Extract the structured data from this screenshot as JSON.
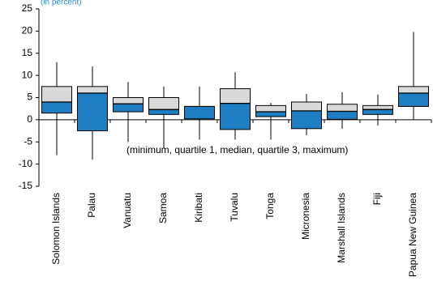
{
  "chart_data": {
    "type": "boxplot",
    "title": "",
    "unit_label": "(in percent)",
    "annotation": "(minimum, quartile 1, median, quartile 3, maximum)",
    "ylim": [
      -15,
      25
    ],
    "yticks": [
      -15,
      -10,
      -5,
      0,
      5,
      10,
      15,
      20,
      25
    ],
    "grid": false,
    "colors": {
      "lower_box": "#1f7dc1",
      "upper_box": "#d9d9d9",
      "box_border": "#000000",
      "whisker": "#000000",
      "axis": "#000000"
    },
    "categories": [
      "Solomon Islands",
      "Palau",
      "Vanuatu",
      "Samoa",
      "Kiribati",
      "Tuvalu",
      "Tonga",
      "Micronesia",
      "Marshall Islands",
      "Fiji",
      "Papua New Guinea"
    ],
    "boxes": [
      {
        "min": -8.0,
        "q1": 1.5,
        "median": 4.0,
        "q3": 7.5,
        "max": 13.0
      },
      {
        "min": -9.0,
        "q1": -2.5,
        "median": 6.0,
        "q3": 7.5,
        "max": 12.0
      },
      {
        "min": -5.0,
        "q1": 1.8,
        "median": 3.6,
        "q3": 5.0,
        "max": 8.5
      },
      {
        "min": -6.5,
        "q1": 1.2,
        "median": 2.3,
        "q3": 5.0,
        "max": 7.5
      },
      {
        "min": -4.5,
        "q1": 0.2,
        "median": 3.0,
        "q3": 3.0,
        "max": 7.5
      },
      {
        "min": -4.5,
        "q1": -2.2,
        "median": 3.7,
        "q3": 7.0,
        "max": 10.7
      },
      {
        "min": -4.5,
        "q1": 0.7,
        "median": 1.8,
        "q3": 3.2,
        "max": 3.8
      },
      {
        "min": -3.5,
        "q1": -2.0,
        "median": 2.0,
        "q3": 4.0,
        "max": 5.8
      },
      {
        "min": -2.0,
        "q1": 0.1,
        "median": 1.9,
        "q3": 3.5,
        "max": 6.2
      },
      {
        "min": -1.3,
        "q1": 1.2,
        "median": 2.3,
        "q3": 3.2,
        "max": 5.7
      },
      {
        "min": 0.0,
        "q1": 3.0,
        "median": 6.0,
        "q3": 7.5,
        "max": 19.8
      }
    ]
  }
}
